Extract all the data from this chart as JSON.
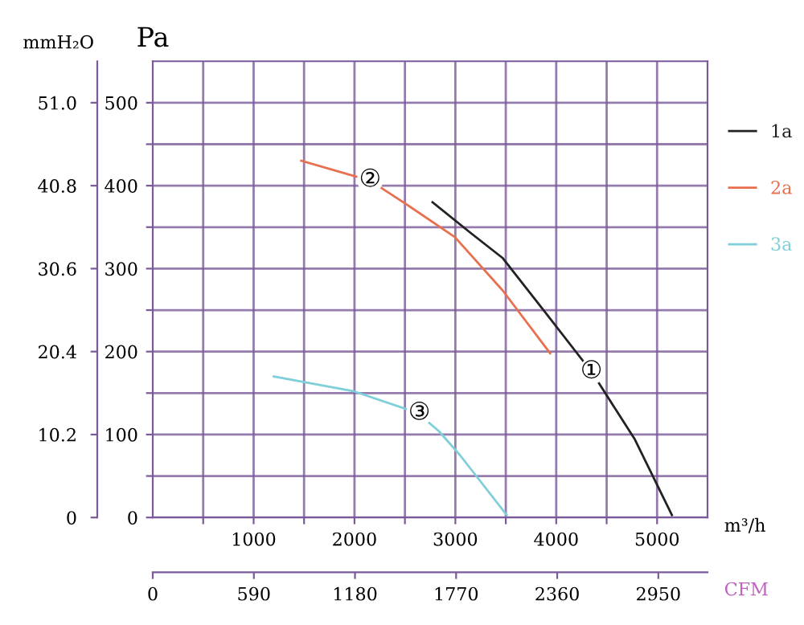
{
  "chart_data": {
    "type": "line",
    "xlabel": "m³/h",
    "ylabel": "Pa",
    "y2label": "mmH₂O",
    "x2label": "CFM",
    "xlim": [
      0,
      5500
    ],
    "xticks": [
      {
        "value": 500,
        "label": null
      },
      1000,
      {
        "value": 1500,
        "label": null
      },
      2000,
      {
        "value": 2500,
        "label": null
      },
      3000,
      {
        "value": 3500,
        "label": null
      },
      4000,
      {
        "value": 4500,
        "label": null
      },
      5000
    ],
    "ylim": [
      0,
      550
    ],
    "yticks": [
      0,
      {
        "value": 50,
        "label": null
      },
      100,
      {
        "value": 150,
        "label": null
      },
      200,
      {
        "value": 250,
        "label": null
      },
      300,
      {
        "value": 350,
        "label": null
      },
      400,
      {
        "value": 450,
        "label": null
      },
      500
    ],
    "y2lim": [
      0,
      56.1
    ],
    "y2ticks": [
      0,
      10.2,
      20.4,
      30.6,
      40.8,
      {
        "value": 51.0,
        "label": "51.0"
      }
    ],
    "x2lim": [
      0,
      3237
    ],
    "x2ticks": [
      0,
      590,
      1180,
      1770,
      2360,
      2950
    ],
    "grid": true,
    "legend": "right",
    "marker": "none",
    "line_style": "solid",
    "series": [
      {
        "name": "1a",
        "color": "#222222",
        "x": [
          2774,
          3152,
          3467,
          3887,
          4360,
          4780,
          5147
        ],
        "values": [
          380,
          343,
          313,
          248,
          174,
          94,
          3
        ]
      },
      {
        "name": "2a",
        "color": "#e8704f",
        "x": [
          1472,
          2155,
          2522,
          2995,
          3467,
          3940
        ],
        "values": [
          430,
          406,
          377,
          338,
          274,
          198
        ]
      },
      {
        "name": "3a",
        "color": "#7fcfd8",
        "x": [
          1200,
          1997,
          2627,
          2837,
          3047,
          3509
        ],
        "values": [
          170,
          152,
          126,
          104,
          75,
          3
        ]
      }
    ],
    "annotations": [
      {
        "text": "①",
        "x": 4349,
        "y": 176
      },
      {
        "text": "②",
        "x": 2155,
        "y": 407
      },
      {
        "text": "③",
        "x": 2643,
        "y": 126
      }
    ]
  }
}
